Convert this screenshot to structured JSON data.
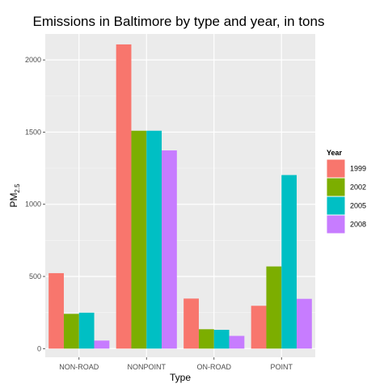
{
  "chart_data": {
    "type": "bar",
    "title": "Emissions in Baltimore by type and year, in tons",
    "xlabel": "Type",
    "ylabel": {
      "main": "PM",
      "subscript": "2.5"
    },
    "categories": [
      "NON-ROAD",
      "NONPOINT",
      "ON-ROAD",
      "POINT"
    ],
    "series": [
      {
        "name": "1999",
        "color": "#F8766D",
        "values": [
          522.9,
          2107.6,
          346.8,
          296.8
        ]
      },
      {
        "name": "2002",
        "color": "#7CAE00",
        "values": [
          240.8,
          1509.5,
          134.3,
          569.3
        ]
      },
      {
        "name": "2005",
        "color": "#00BFC4",
        "values": [
          248.9,
          1509.5,
          130.4,
          1202.5
        ]
      },
      {
        "name": "2008",
        "color": "#C77CFF",
        "values": [
          55.8,
          1373.2,
          88.3,
          344.98
        ]
      }
    ],
    "ylim": [
      -60,
      2180
    ],
    "yticks": [
      0,
      500,
      1000,
      1500,
      2000
    ],
    "grid": true,
    "legend": {
      "title": "Year",
      "position": "right"
    },
    "colors": {
      "panel": "#EBEBEB",
      "grid_major": "#FFFFFF"
    }
  }
}
